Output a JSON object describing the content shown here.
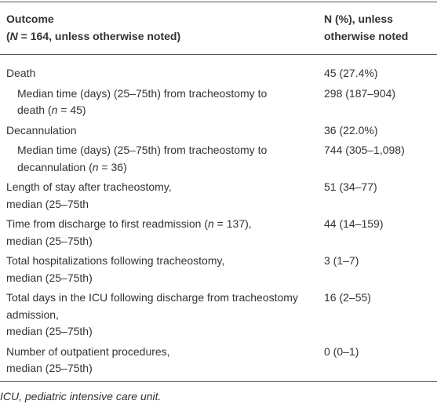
{
  "header": {
    "col1": [
      [
        "Outcome"
      ],
      [
        "(",
        "N",
        " = 164, unless otherwise noted)"
      ]
    ],
    "col2": [
      [
        "N (%), unless"
      ],
      [
        "otherwise noted"
      ]
    ]
  },
  "table": {
    "rows": [
      {
        "label": [
          [
            "Death"
          ]
        ],
        "value": "45 (27.4%)"
      },
      {
        "label": [
          [
            "Median time (days) (25–75th) from tracheostomy to"
          ],
          [
            "death (",
            "n",
            " = 45)"
          ]
        ],
        "value": "298 (187–904)"
      },
      {
        "label": [
          [
            "Decannulation"
          ]
        ],
        "value": "36 (22.0%)"
      },
      {
        "label": [
          [
            "Median time (days) (25–75th) from tracheostomy to"
          ],
          [
            "decannulation (",
            "n",
            " = 36)"
          ]
        ],
        "value": "744 (305–1,098)"
      },
      {
        "label": [
          [
            "Length of stay after tracheostomy,"
          ],
          [
            "median (25–75th"
          ]
        ],
        "value": "51 (34–77)"
      },
      {
        "label": [
          [
            "Time from discharge to first readmission (",
            "n",
            " = 137),"
          ],
          [
            "median (25–75th)"
          ]
        ],
        "value": "44 (14–159)"
      },
      {
        "label": [
          [
            "Total hospitalizations following tracheostomy,"
          ],
          [
            "median (25–75th)"
          ]
        ],
        "value": "3 (1–7)"
      },
      {
        "label": [
          [
            "Total days in the ICU following discharge from tracheostomy"
          ],
          [
            "admission,"
          ],
          [
            "median (25–75th)"
          ]
        ],
        "value": "16 (2–55)"
      },
      {
        "label": [
          [
            "Number of outpatient procedures,"
          ],
          [
            "median (25–75th)"
          ]
        ],
        "value": "0 (0–1)"
      }
    ]
  },
  "footnote": "ICU, pediatric intensive care unit."
}
